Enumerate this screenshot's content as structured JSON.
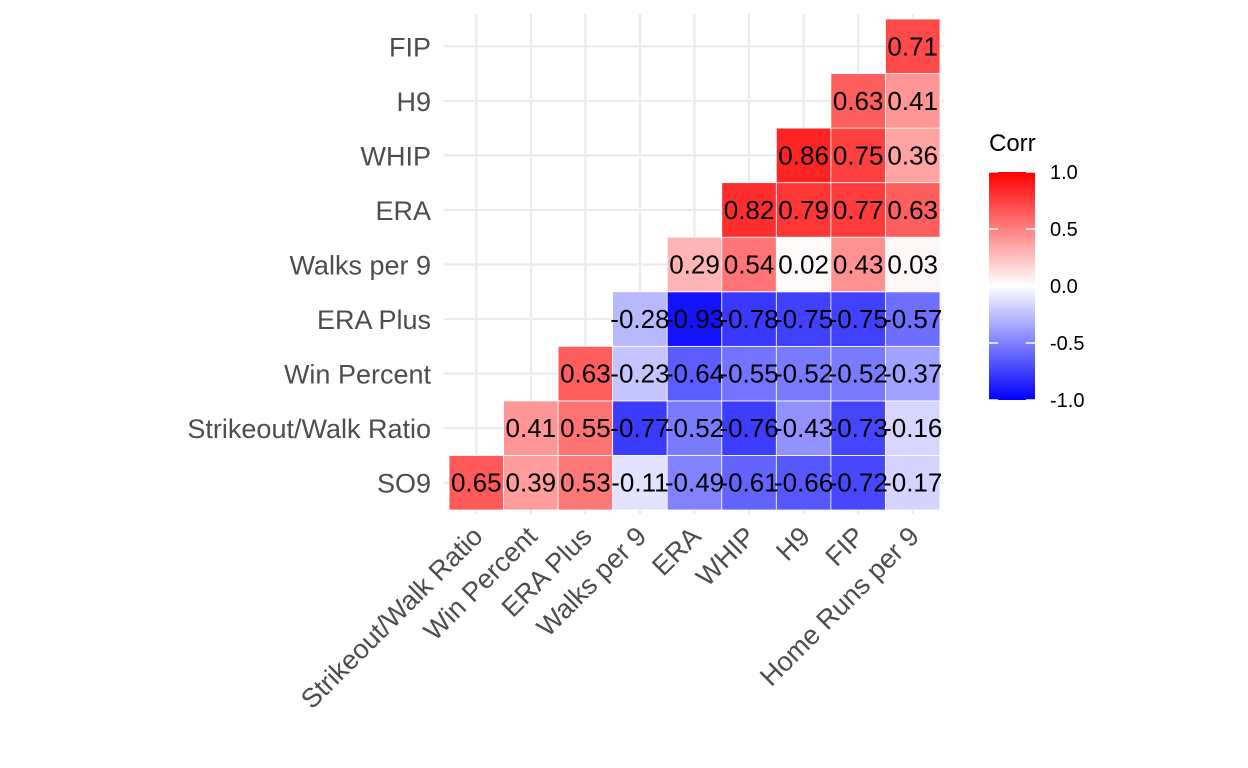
{
  "chart_data": {
    "type": "heatmap",
    "x_categories": [
      "Strikeout/Walk Ratio",
      "Win Percent",
      "ERA Plus",
      "Walks per 9",
      "ERA",
      "WHIP",
      "H9",
      "FIP",
      "Home Runs per 9"
    ],
    "y_categories": [
      "SO9",
      "Strikeout/Walk Ratio",
      "Win Percent",
      "ERA Plus",
      "Walks per 9",
      "ERA",
      "WHIP",
      "H9",
      "FIP"
    ],
    "cells": [
      {
        "y": "SO9",
        "x": "Strikeout/Walk Ratio",
        "value": 0.65,
        "label": "0.65"
      },
      {
        "y": "SO9",
        "x": "Win Percent",
        "value": 0.39,
        "label": "0.39"
      },
      {
        "y": "SO9",
        "x": "ERA Plus",
        "value": 0.53,
        "label": "0.53"
      },
      {
        "y": "SO9",
        "x": "Walks per 9",
        "value": -0.11,
        "label": "-0.11"
      },
      {
        "y": "SO9",
        "x": "ERA",
        "value": -0.49,
        "label": "-0.49"
      },
      {
        "y": "SO9",
        "x": "WHIP",
        "value": -0.61,
        "label": "-0.61"
      },
      {
        "y": "SO9",
        "x": "H9",
        "value": -0.66,
        "label": "-0.66"
      },
      {
        "y": "SO9",
        "x": "FIP",
        "value": -0.72,
        "label": "-0.72"
      },
      {
        "y": "SO9",
        "x": "Home Runs per 9",
        "value": -0.17,
        "label": "-0.17"
      },
      {
        "y": "Strikeout/Walk Ratio",
        "x": "Win Percent",
        "value": 0.41,
        "label": "0.41"
      },
      {
        "y": "Strikeout/Walk Ratio",
        "x": "ERA Plus",
        "value": 0.55,
        "label": "0.55"
      },
      {
        "y": "Strikeout/Walk Ratio",
        "x": "Walks per 9",
        "value": -0.77,
        "label": "-0.77"
      },
      {
        "y": "Strikeout/Walk Ratio",
        "x": "ERA",
        "value": -0.52,
        "label": "-0.52"
      },
      {
        "y": "Strikeout/Walk Ratio",
        "x": "WHIP",
        "value": -0.76,
        "label": "-0.76"
      },
      {
        "y": "Strikeout/Walk Ratio",
        "x": "H9",
        "value": -0.43,
        "label": "-0.43"
      },
      {
        "y": "Strikeout/Walk Ratio",
        "x": "FIP",
        "value": -0.73,
        "label": "-0.73"
      },
      {
        "y": "Strikeout/Walk Ratio",
        "x": "Home Runs per 9",
        "value": -0.16,
        "label": "-0.16"
      },
      {
        "y": "Win Percent",
        "x": "ERA Plus",
        "value": 0.63,
        "label": "0.63"
      },
      {
        "y": "Win Percent",
        "x": "Walks per 9",
        "value": -0.23,
        "label": "-0.23"
      },
      {
        "y": "Win Percent",
        "x": "ERA",
        "value": -0.64,
        "label": "-0.64"
      },
      {
        "y": "Win Percent",
        "x": "WHIP",
        "value": -0.55,
        "label": "-0.55"
      },
      {
        "y": "Win Percent",
        "x": "H9",
        "value": -0.52,
        "label": "-0.52"
      },
      {
        "y": "Win Percent",
        "x": "FIP",
        "value": -0.52,
        "label": "-0.52"
      },
      {
        "y": "Win Percent",
        "x": "Home Runs per 9",
        "value": -0.37,
        "label": "-0.37"
      },
      {
        "y": "ERA Plus",
        "x": "Walks per 9",
        "value": -0.28,
        "label": "-0.28"
      },
      {
        "y": "ERA Plus",
        "x": "ERA",
        "value": -0.93,
        "label": "-0.93"
      },
      {
        "y": "ERA Plus",
        "x": "WHIP",
        "value": -0.78,
        "label": "-0.78"
      },
      {
        "y": "ERA Plus",
        "x": "H9",
        "value": -0.75,
        "label": "-0.75"
      },
      {
        "y": "ERA Plus",
        "x": "FIP",
        "value": -0.75,
        "label": "-0.75"
      },
      {
        "y": "ERA Plus",
        "x": "Home Runs per 9",
        "value": -0.57,
        "label": "-0.57"
      },
      {
        "y": "Walks per 9",
        "x": "ERA",
        "value": 0.29,
        "label": "0.29"
      },
      {
        "y": "Walks per 9",
        "x": "WHIP",
        "value": 0.54,
        "label": "0.54"
      },
      {
        "y": "Walks per 9",
        "x": "H9",
        "value": 0.02,
        "label": "0.02"
      },
      {
        "y": "Walks per 9",
        "x": "FIP",
        "value": 0.43,
        "label": "0.43"
      },
      {
        "y": "Walks per 9",
        "x": "Home Runs per 9",
        "value": 0.03,
        "label": "0.03"
      },
      {
        "y": "ERA",
        "x": "WHIP",
        "value": 0.82,
        "label": "0.82"
      },
      {
        "y": "ERA",
        "x": "H9",
        "value": 0.79,
        "label": "0.79"
      },
      {
        "y": "ERA",
        "x": "FIP",
        "value": 0.77,
        "label": "0.77"
      },
      {
        "y": "ERA",
        "x": "Home Runs per 9",
        "value": 0.63,
        "label": "0.63"
      },
      {
        "y": "WHIP",
        "x": "H9",
        "value": 0.86,
        "label": "0.86"
      },
      {
        "y": "WHIP",
        "x": "FIP",
        "value": 0.75,
        "label": "0.75"
      },
      {
        "y": "WHIP",
        "x": "Home Runs per 9",
        "value": 0.36,
        "label": "0.36"
      },
      {
        "y": "H9",
        "x": "FIP",
        "value": 0.63,
        "label": "0.63"
      },
      {
        "y": "H9",
        "x": "Home Runs per 9",
        "value": 0.41,
        "label": "0.41"
      },
      {
        "y": "FIP",
        "x": "Home Runs per 9",
        "value": 0.71,
        "label": "0.71"
      }
    ],
    "legend": {
      "title": "Corr",
      "placement": "right",
      "ticks": [
        "1.0",
        "0.5",
        "0.0",
        "-0.5",
        "-1.0"
      ],
      "tick_values": [
        1.0,
        0.5,
        0.0,
        -0.5,
        -1.0
      ],
      "range": [
        -1.0,
        1.0
      ]
    },
    "colors": {
      "low": "#0000ff",
      "mid": "#ffffff",
      "high": "#ff0000",
      "grid": "#ebebeb"
    },
    "grid": true
  }
}
